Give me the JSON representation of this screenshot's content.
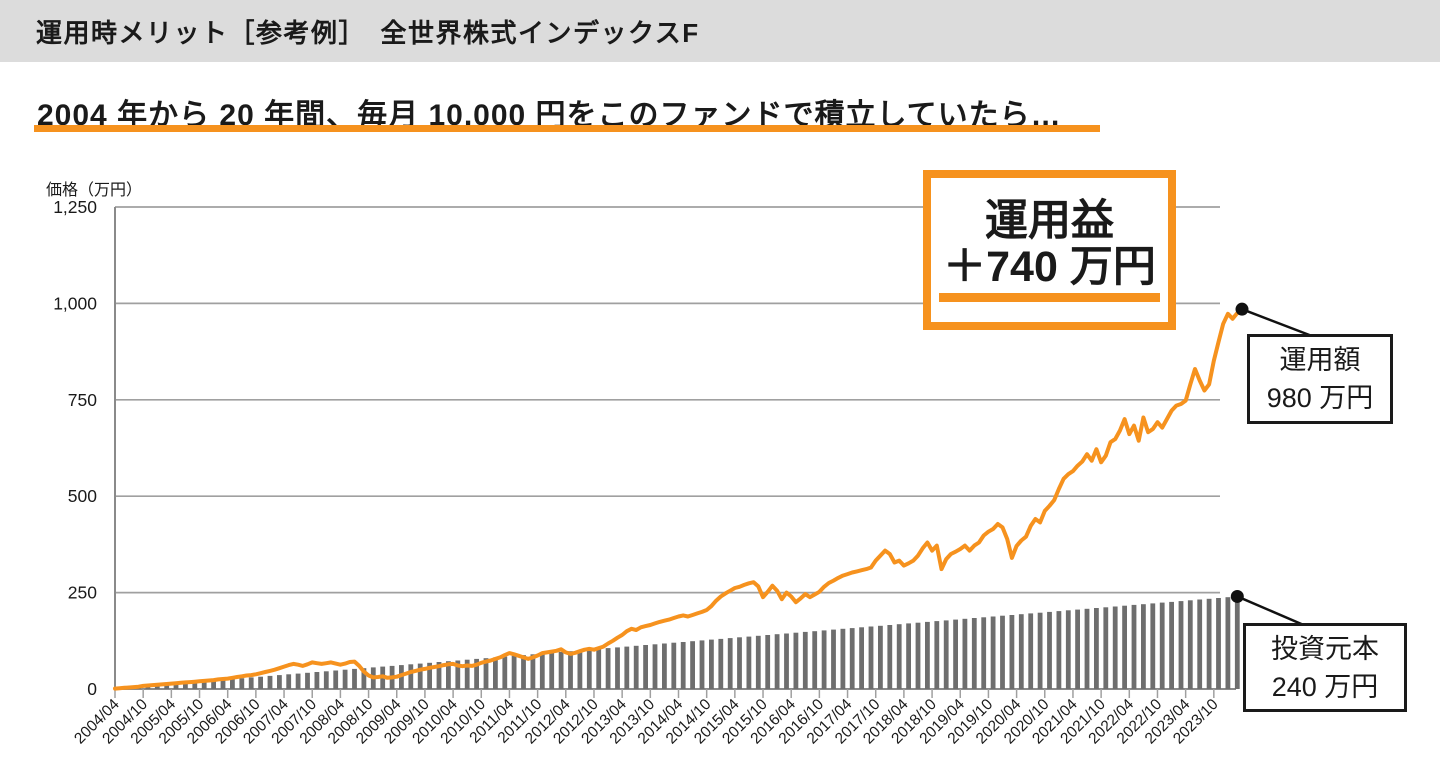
{
  "header": {
    "title": "運用時メリット［参考例］　全世界株式インデックスF"
  },
  "subtitle": {
    "text": "2004 年から 20 年間、毎月 10,000 円をこのファンドで積立していたら…"
  },
  "colors": {
    "accent_orange": "#f6921e",
    "bar_gray": "#6e6e6e",
    "grid_gray": "#a0a0a0",
    "axis_gray": "#8a8a8a",
    "header_bg": "#dcdcdc",
    "dot_black": "#111111"
  },
  "chart_data": {
    "type": "line+bar",
    "ylabel": "価格（万円）",
    "ylim": [
      0,
      1250
    ],
    "yticks": [
      0,
      250,
      500,
      750,
      1000,
      1250
    ],
    "ytick_labels": [
      "0",
      "250",
      "500",
      "750",
      "1,000",
      "1,250"
    ],
    "x_unit": "month",
    "x_start": "2004/04",
    "x_end": "2024/03",
    "months_total": 241,
    "xtick_every_months": 6,
    "xtick_labels": [
      "2004/04",
      "2004/10",
      "2005/04",
      "2005/10",
      "2006/04",
      "2006/10",
      "2007/04",
      "2007/10",
      "2008/04",
      "2008/10",
      "2009/04",
      "2009/10",
      "2010/04",
      "2010/10",
      "2011/04",
      "2011/10",
      "2012/04",
      "2012/10",
      "2013/04",
      "2013/10",
      "2014/04",
      "2014/10",
      "2015/04",
      "2015/10",
      "2016/04",
      "2016/10",
      "2017/04",
      "2017/10",
      "2018/04",
      "2018/10",
      "2019/04",
      "2019/10",
      "2020/04",
      "2020/10",
      "2021/04",
      "2021/10",
      "2022/04",
      "2022/10",
      "2023/04",
      "2023/10"
    ],
    "series": [
      {
        "name": "投資元本",
        "type": "bar",
        "color": "#6e6e6e",
        "values_spec": {
          "kind": "linear_cumulative",
          "monthly_amount_man_yen": 1,
          "from": 1,
          "to": 240,
          "months": 240,
          "bars_drawn_every_months": 2
        }
      },
      {
        "name": "運用額",
        "type": "line",
        "color": "#f6921e",
        "values": [
          1,
          2,
          3,
          4,
          5,
          6,
          8,
          9,
          10,
          11,
          12,
          13,
          14,
          15,
          16,
          17,
          18,
          19,
          20,
          21,
          22,
          23,
          25,
          26,
          27,
          29,
          31,
          33,
          35,
          36,
          38,
          41,
          44,
          47,
          50,
          54,
          58,
          62,
          65,
          63,
          60,
          64,
          69,
          67,
          65,
          67,
          69,
          66,
          63,
          66,
          70,
          71,
          60,
          45,
          35,
          30,
          31,
          33,
          29,
          30,
          32,
          36,
          40,
          44,
          47,
          50,
          52,
          55,
          57,
          59,
          62,
          64,
          65,
          61,
          59,
          61,
          60,
          63,
          68,
          71,
          74,
          78,
          82,
          88,
          93,
          90,
          86,
          82,
          78,
          82,
          87,
          93,
          95,
          97,
          99,
          103,
          95,
          91,
          94,
          98,
          102,
          104,
          102,
          106,
          110,
          118,
          125,
          133,
          140,
          150,
          156,
          153,
          160,
          163,
          166,
          170,
          174,
          177,
          180,
          184,
          188,
          191,
          188,
          192,
          196,
          200,
          205,
          215,
          229,
          240,
          248,
          255,
          262,
          265,
          270,
          274,
          277,
          266,
          238,
          252,
          268,
          255,
          233,
          250,
          240,
          225,
          235,
          246,
          238,
          245,
          252,
          265,
          275,
          281,
          288,
          294,
          298,
          302,
          305,
          308,
          311,
          315,
          333,
          346,
          359,
          350,
          328,
          333,
          320,
          326,
          333,
          346,
          365,
          380,
          359,
          372,
          311,
          337,
          350,
          356,
          363,
          372,
          359,
          372,
          380,
          398,
          408,
          415,
          428,
          419,
          389,
          340,
          371,
          385,
          395,
          423,
          441,
          432,
          462,
          475,
          490,
          519,
          545,
          557,
          565,
          579,
          590,
          609,
          592,
          622,
          588,
          605,
          640,
          648,
          670,
          700,
          661,
          683,
          644,
          704,
          666,
          674,
          692,
          678,
          700,
          722,
          735,
          739,
          748,
          790,
          830,
          800,
          774,
          790,
          851,
          900,
          947,
          973,
          960,
          975,
          985
        ]
      }
    ]
  },
  "annotations": {
    "gain": {
      "title": "運用益",
      "value": "＋740 万円"
    },
    "value_callout": {
      "line1": "運用額",
      "line2": "980 万円"
    },
    "principal_callout": {
      "line1": "投資元本",
      "line2": "240 万円"
    }
  }
}
